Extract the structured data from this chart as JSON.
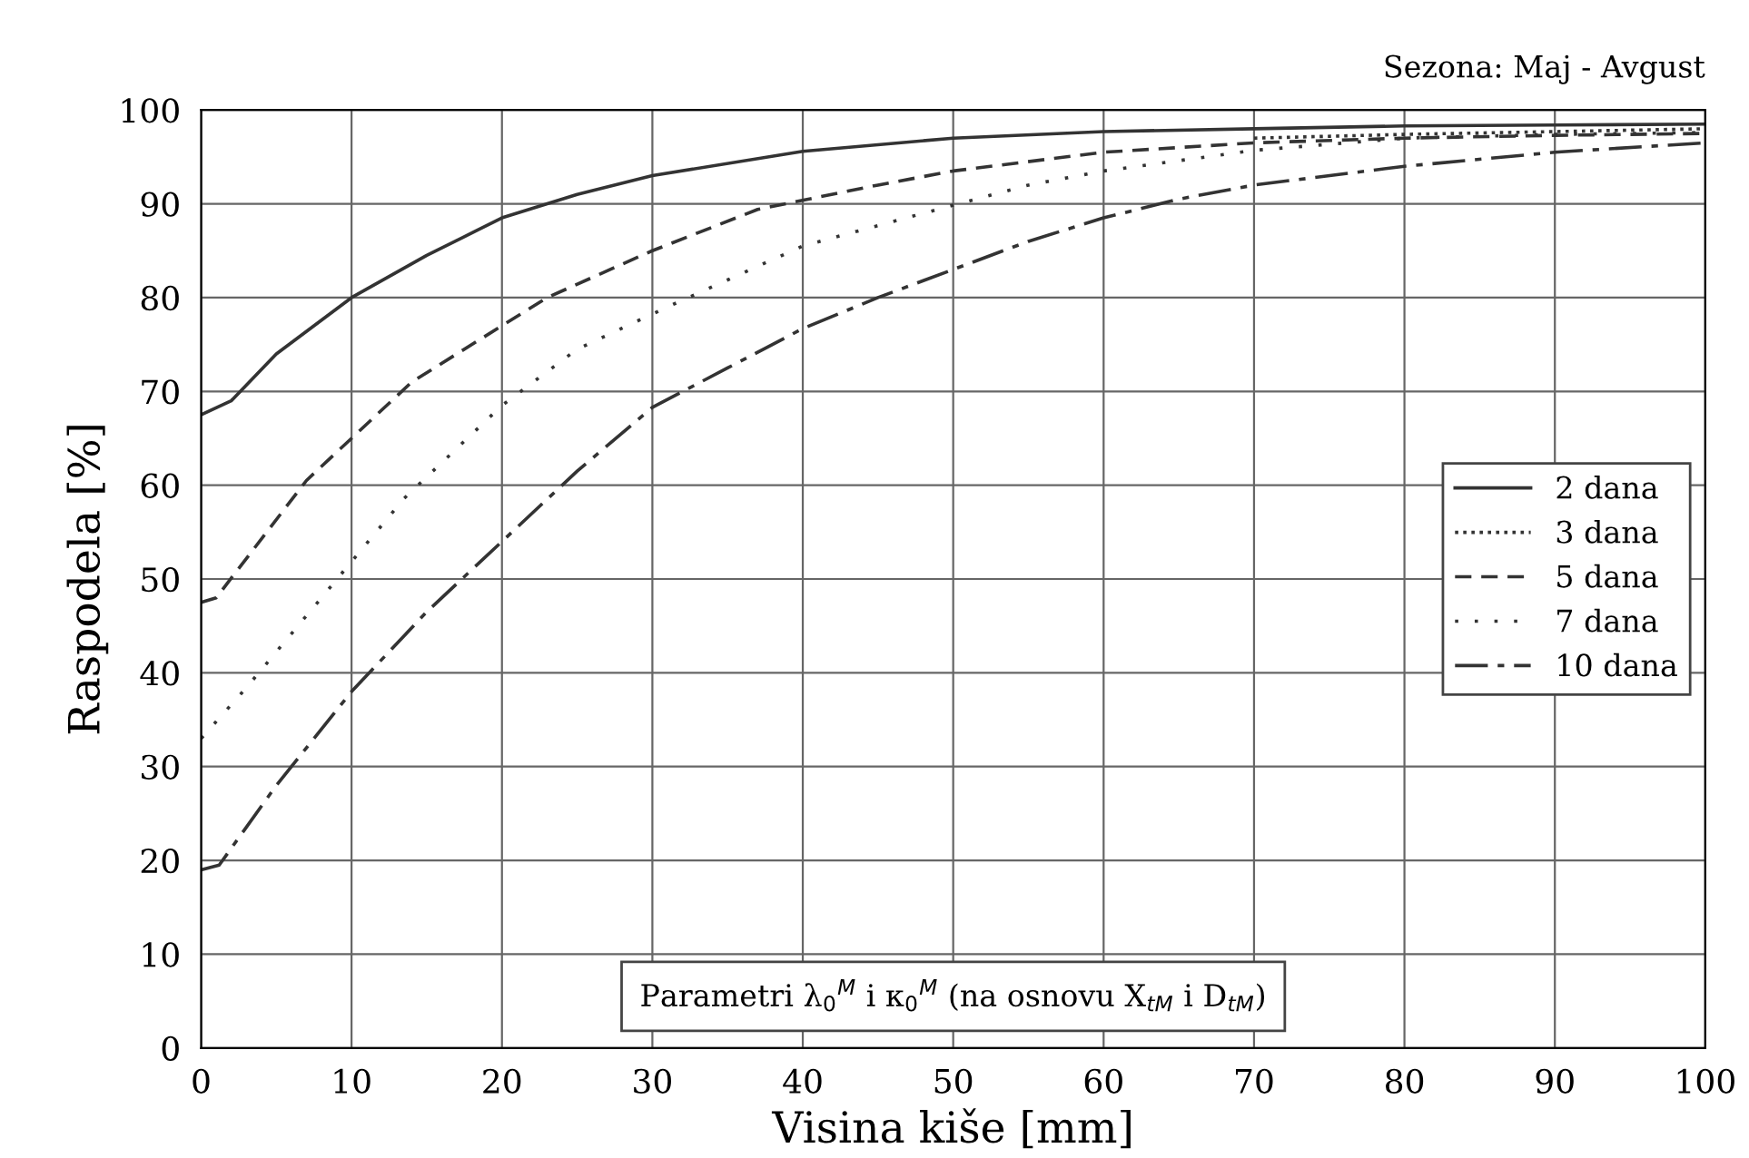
{
  "chart_data": {
    "type": "line",
    "xlabel": "Visina kiše [mm]",
    "ylabel": "Raspodela [%]",
    "xlim": [
      0,
      100
    ],
    "ylim": [
      0,
      100
    ],
    "xticks": [
      0,
      10,
      20,
      30,
      40,
      50,
      60,
      70,
      80,
      90,
      100
    ],
    "yticks": [
      0,
      10,
      20,
      30,
      40,
      50,
      60,
      70,
      80,
      90,
      100
    ],
    "grid": true,
    "legend": "right",
    "marker": "none",
    "annotations": [
      "Sezona: Maj - Avgust",
      "Parametri λ$_{0}$$^{M}$ i κ$_{0}$$^{M}$ (na osnovu X$_{tM}$ i D$_{tM}$)"
    ],
    "series": [
      {
        "name": "2 dana",
        "color": "#333333",
        "line_style": "solid",
        "x": [
          0,
          2,
          5,
          10,
          15,
          20,
          25,
          30,
          40,
          50,
          60,
          70,
          80,
          90,
          100
        ],
        "values": [
          67.5,
          69,
          74,
          80,
          84.5,
          88.5,
          91,
          93,
          95.6,
          97,
          97.7,
          98,
          98.3,
          98.4,
          98.5
        ]
      },
      {
        "name": "3 dana",
        "color": "#333333",
        "line_style": "dotted",
        "x": [
          70,
          80,
          90,
          100
        ],
        "values": [
          97,
          97.4,
          97.7,
          98
        ]
      },
      {
        "name": "5 dana",
        "color": "#333333",
        "line_style": "dashed",
        "x": [
          0,
          1,
          7,
          14,
          23,
          30,
          37,
          45,
          50,
          60,
          70,
          80,
          90,
          100
        ],
        "values": [
          47.5,
          48,
          60.5,
          71,
          80,
          85,
          89.4,
          92,
          93.5,
          95.5,
          96.5,
          97,
          97.3,
          97.5
        ]
      },
      {
        "name": "7 dana",
        "color": "#333333",
        "line_style": "sparse",
        "x": [
          0,
          3,
          8,
          13.5,
          20,
          25,
          31,
          40,
          48.5,
          55,
          60,
          70,
          80,
          90,
          100
        ],
        "values": [
          33,
          38.4,
          48,
          58.6,
          68.5,
          74.5,
          79,
          85.5,
          89.2,
          92,
          93.5,
          95.7,
          97,
          97.4,
          97.6
        ]
      },
      {
        "name": "10 dana",
        "color": "#333333",
        "line_style": "longdash",
        "x": [
          0,
          1.2,
          5,
          10,
          15,
          20,
          25,
          30,
          35,
          40,
          45,
          50,
          55,
          60,
          65,
          70,
          80,
          90,
          100
        ],
        "values": [
          19,
          19.5,
          28,
          38,
          46.5,
          54,
          61.5,
          68.3,
          72.5,
          76.7,
          80,
          83,
          86,
          88.5,
          90.5,
          92,
          94,
          95.5,
          96.5
        ]
      }
    ]
  }
}
